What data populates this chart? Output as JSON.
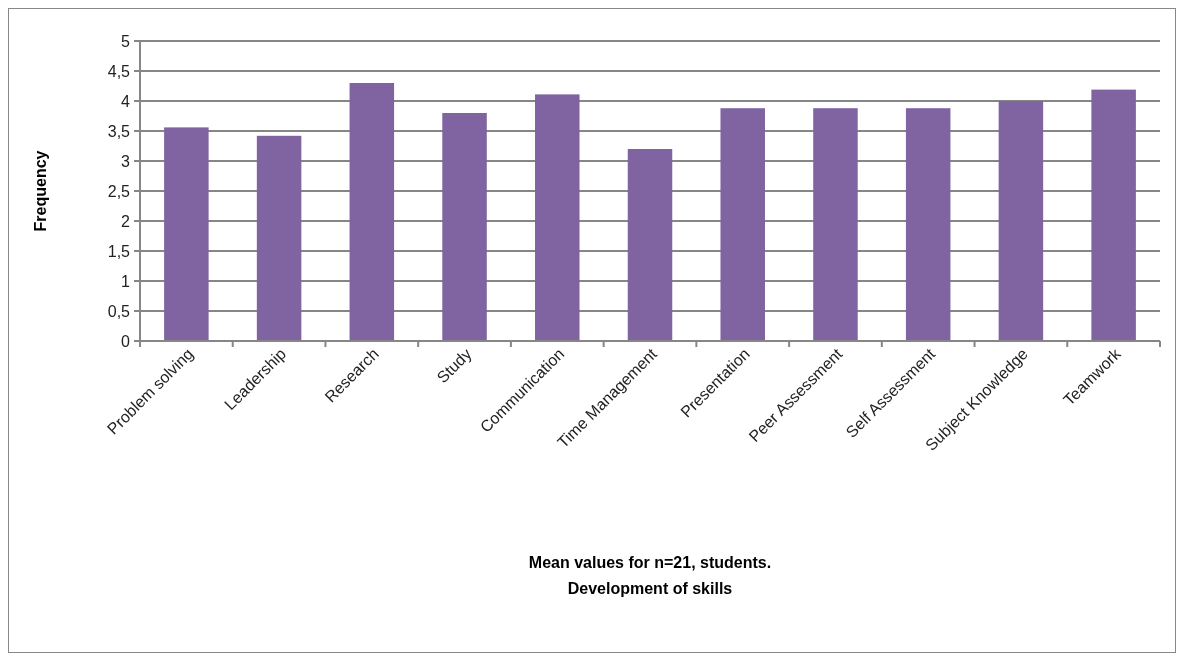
{
  "chart_data": {
    "type": "bar",
    "annotations": [
      "Mean values for n=21, students.",
      "Development of skills"
    ],
    "ylabel": "Frequency",
    "categories": [
      "Problem solving",
      "Leadership",
      "Research",
      "Study",
      "Communication",
      "Time Management",
      "Presentation",
      "Peer Assessment",
      "Self Assessment",
      "Subject Knowledge",
      "Teamwork"
    ],
    "values": [
      3.56,
      3.42,
      4.3,
      3.8,
      4.11,
      3.2,
      3.88,
      3.88,
      3.88,
      4.0,
      4.19
    ],
    "color": "#8064a2",
    "ylim": [
      0,
      5
    ],
    "yticks": [
      0,
      {
        "value": 0.5,
        "label": "0,5"
      },
      1,
      {
        "value": 1.5,
        "label": "1,5"
      },
      2,
      {
        "value": 2.5,
        "label": "2,5"
      },
      3,
      {
        "value": 3.5,
        "label": "3,5"
      },
      4,
      {
        "value": 4.5,
        "label": "4,5"
      },
      5
    ],
    "grid": "y"
  }
}
